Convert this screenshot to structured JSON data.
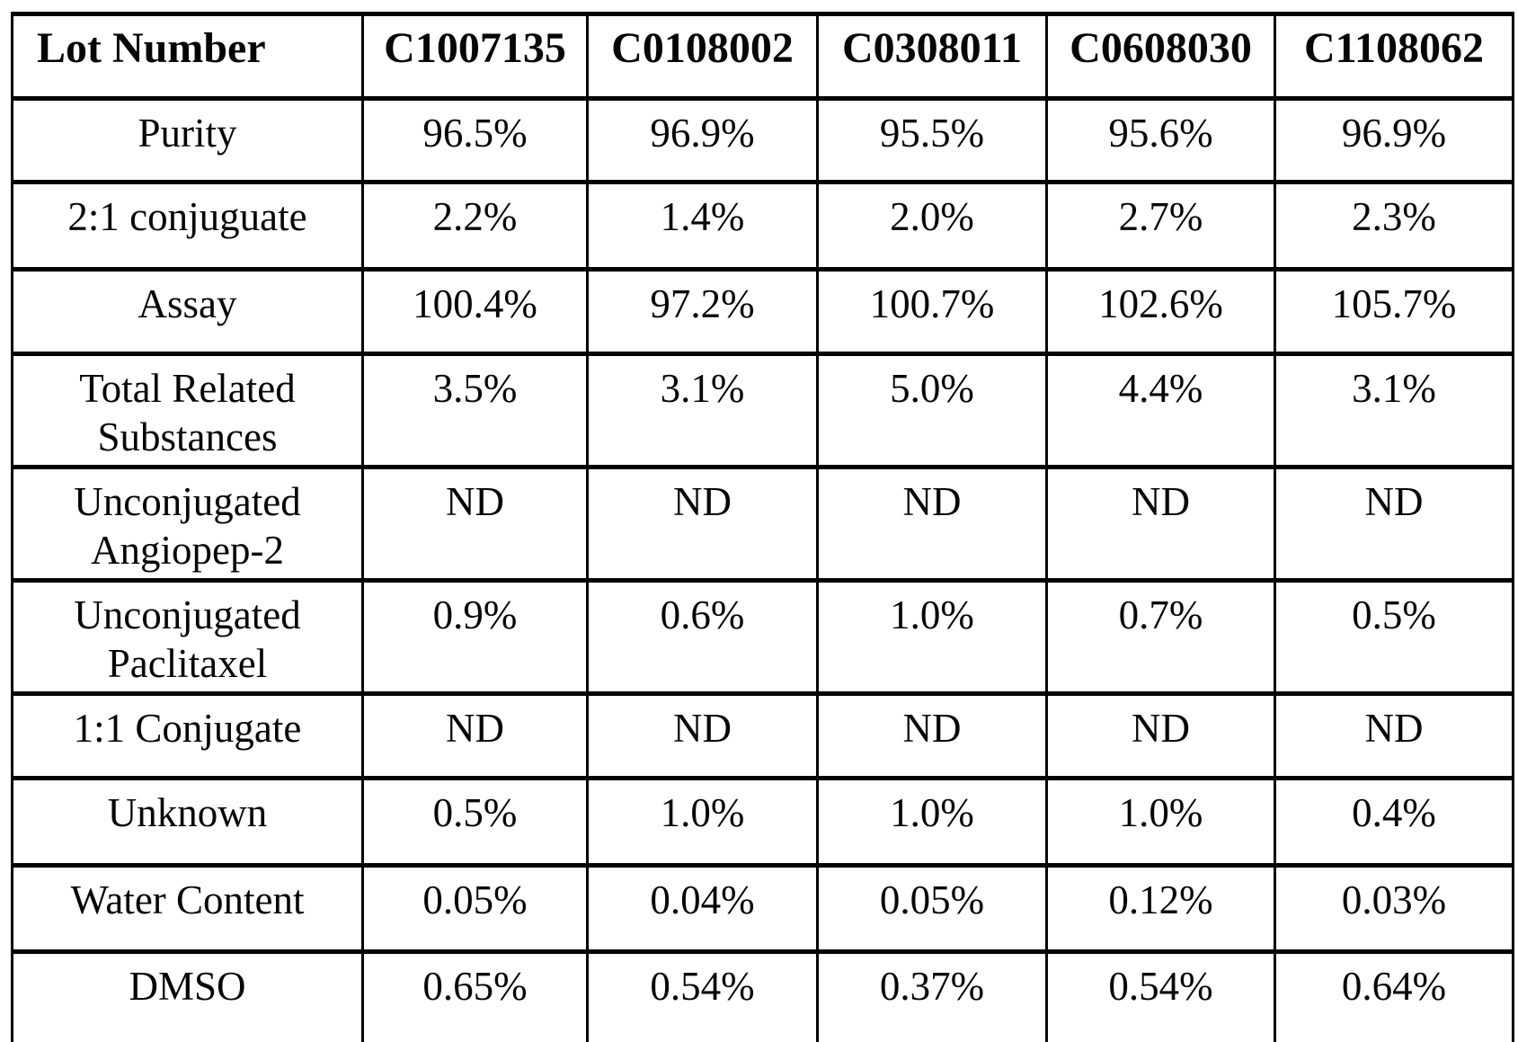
{
  "table": {
    "header": {
      "label": "Lot Number",
      "lots": [
        "C1007135",
        "C0108002",
        "C0308011",
        "C0608030",
        "C1108062"
      ]
    },
    "rows": [
      {
        "label": "Purity",
        "values": [
          "96.5%",
          "96.9%",
          "95.5%",
          "95.6%",
          "96.9%"
        ]
      },
      {
        "label": "2:1 conjuguate",
        "values": [
          "2.2%",
          "1.4%",
          "2.0%",
          "2.7%",
          "2.3%"
        ]
      },
      {
        "label": "Assay",
        "values": [
          "100.4%",
          "97.2%",
          "100.7%",
          "102.6%",
          "105.7%"
        ]
      },
      {
        "label": "Total Related Substances",
        "values": [
          "3.5%",
          "3.1%",
          "5.0%",
          "4.4%",
          "3.1%"
        ]
      },
      {
        "label": "Unconjugated Angiopep-2",
        "values": [
          "ND",
          "ND",
          "ND",
          "ND",
          "ND"
        ]
      },
      {
        "label": "Unconjugated Paclitaxel",
        "values": [
          "0.9%",
          "0.6%",
          "1.0%",
          "0.7%",
          "0.5%"
        ]
      },
      {
        "label": "1:1 Conjugate",
        "values": [
          "ND",
          "ND",
          "ND",
          "ND",
          "ND"
        ]
      },
      {
        "label": "Unknown",
        "values": [
          "0.5%",
          "1.0%",
          "1.0%",
          "1.0%",
          "0.4%"
        ]
      },
      {
        "label": "Water Content",
        "values": [
          "0.05%",
          "0.04%",
          "0.05%",
          "0.12%",
          "0.03%"
        ]
      },
      {
        "label": "DMSO",
        "values": [
          "0.65%",
          "0.54%",
          "0.37%",
          "0.54%",
          "0.64%"
        ]
      }
    ]
  }
}
